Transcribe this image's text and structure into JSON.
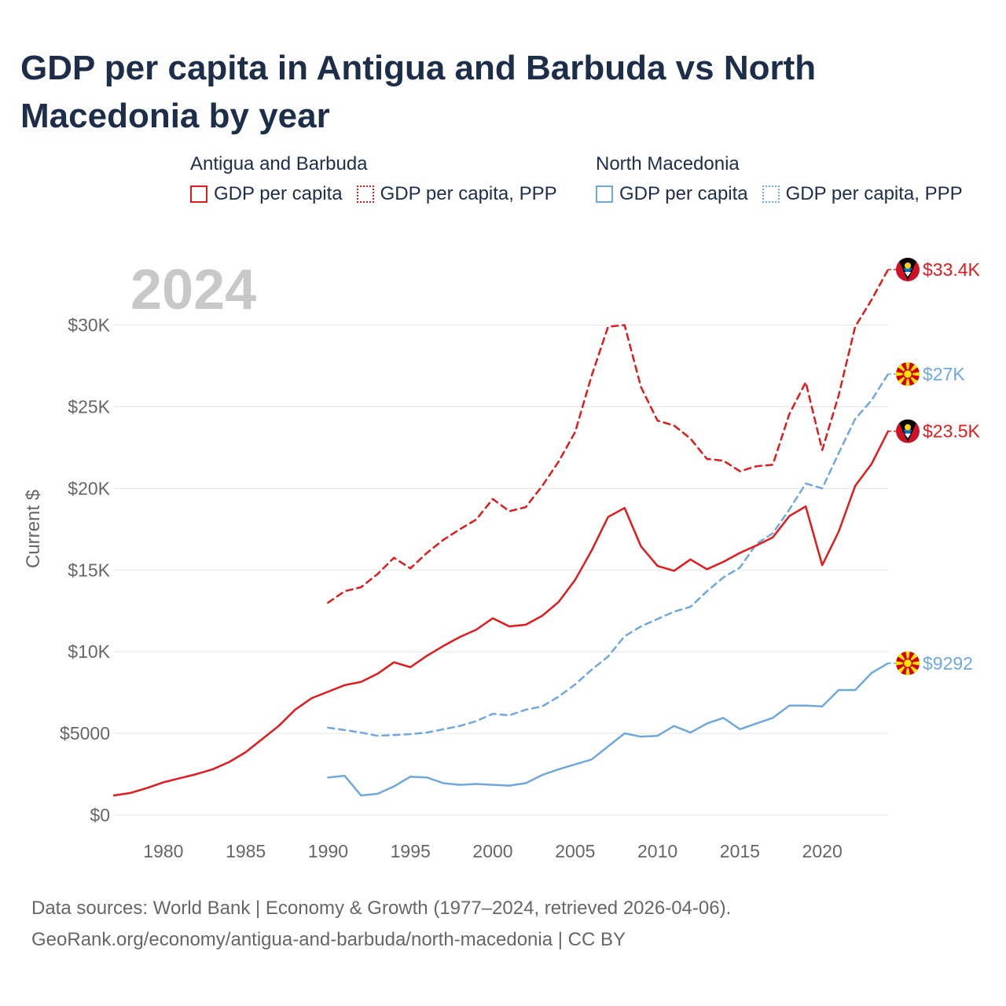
{
  "title": "GDP per capita in Antigua and Barbuda vs North Macedonia by year",
  "legend": {
    "groups": [
      {
        "country": "Antigua and Barbuda",
        "items": [
          "GDP per capita",
          "GDP per capita, PPP"
        ]
      },
      {
        "country": "North Macedonia",
        "items": [
          "GDP per capita",
          "GDP per capita, PPP"
        ]
      }
    ]
  },
  "source": {
    "line1": "Data sources: World Bank | Economy & Growth (1977–2024, retrieved 2026-04-06).",
    "line2": "GeoRank.org/economy/antigua-and-barbuda/north-macedonia | CC BY"
  },
  "colors": {
    "antigua": "#e31a1c",
    "macedonia": "#6fa8dc",
    "grid": "#e6e6e6",
    "axis_text": "#666666",
    "year_watermark": "#c8c8c8"
  },
  "chart_data": {
    "type": "line",
    "title": "GDP per capita in Antigua and Barbuda vs North Macedonia by year",
    "year_label": "2024",
    "ylabel": "Current $",
    "xlabel": "",
    "xlim": [
      1977,
      2024
    ],
    "ylim": [
      0,
      34000
    ],
    "x_ticks": [
      1980,
      1985,
      1990,
      1995,
      2000,
      2005,
      2010,
      2015,
      2020
    ],
    "y_ticks": [
      {
        "value": 0,
        "label": "$0"
      },
      {
        "value": 5000,
        "label": "$5000"
      },
      {
        "value": 10000,
        "label": "$10K"
      },
      {
        "value": 15000,
        "label": "$15K"
      },
      {
        "value": 20000,
        "label": "$20K"
      },
      {
        "value": 25000,
        "label": "$25K"
      },
      {
        "value": 30000,
        "label": "$30K"
      }
    ],
    "grid": true,
    "series": [
      {
        "name": "Antigua and Barbuda — GDP per capita, PPP",
        "country": "antigua",
        "style": "dashed",
        "end_label": "$33.4K",
        "x": [
          1990,
          1991,
          1992,
          1993,
          1994,
          1995,
          1996,
          1997,
          1998,
          1999,
          2000,
          2001,
          2002,
          2003,
          2004,
          2005,
          2006,
          2007,
          2008,
          2009,
          2010,
          2011,
          2012,
          2013,
          2014,
          2015,
          2016,
          2017,
          2018,
          2019,
          2020,
          2021,
          2022,
          2023,
          2024
        ],
        "values": [
          13000,
          13700,
          13950,
          14750,
          15750,
          15100,
          16050,
          16850,
          17500,
          18100,
          19350,
          18600,
          18850,
          20150,
          21650,
          23450,
          26900,
          29900,
          30000,
          26200,
          24150,
          23850,
          23050,
          21800,
          21700,
          21050,
          21350,
          21450,
          24550,
          26500,
          22350,
          25700,
          29900,
          31550,
          33400
        ]
      },
      {
        "name": "North Macedonia — GDP per capita, PPP",
        "country": "macedonia",
        "style": "dashed",
        "end_label": "$27K",
        "x": [
          1990,
          1991,
          1992,
          1993,
          1994,
          1995,
          1996,
          1997,
          1998,
          1999,
          2000,
          2001,
          2002,
          2003,
          2004,
          2005,
          2006,
          2007,
          2008,
          2009,
          2010,
          2011,
          2012,
          2013,
          2014,
          2015,
          2016,
          2017,
          2018,
          2019,
          2020,
          2021,
          2022,
          2023,
          2024
        ],
        "values": [
          5350,
          5200,
          5050,
          4850,
          4900,
          4950,
          5050,
          5250,
          5450,
          5750,
          6200,
          6100,
          6450,
          6650,
          7250,
          8000,
          8900,
          9700,
          10950,
          11550,
          12000,
          12450,
          12750,
          13700,
          14550,
          15150,
          16600,
          17250,
          18700,
          20300,
          20000,
          22150,
          24250,
          25400,
          27000
        ]
      },
      {
        "name": "Antigua and Barbuda — GDP per capita",
        "country": "antigua",
        "style": "solid",
        "end_label": "$23.5K",
        "x": [
          1977,
          1978,
          1979,
          1980,
          1981,
          1982,
          1983,
          1984,
          1985,
          1986,
          1987,
          1988,
          1989,
          1990,
          1991,
          1992,
          1993,
          1994,
          1995,
          1996,
          1997,
          1998,
          1999,
          2000,
          2001,
          2002,
          2003,
          2004,
          2005,
          2006,
          2007,
          2008,
          2009,
          2010,
          2011,
          2012,
          2013,
          2014,
          2015,
          2016,
          2017,
          2018,
          2019,
          2020,
          2021,
          2022,
          2023,
          2024
        ],
        "values": [
          1200,
          1350,
          1650,
          2000,
          2250,
          2500,
          2800,
          3250,
          3850,
          4650,
          5450,
          6450,
          7150,
          7550,
          7950,
          8150,
          8650,
          9350,
          9050,
          9750,
          10350,
          10900,
          11350,
          12050,
          11550,
          11650,
          12200,
          13050,
          14400,
          16200,
          18250,
          18800,
          16450,
          15250,
          14950,
          15650,
          15050,
          15500,
          16050,
          16500,
          17000,
          18300,
          18900,
          15300,
          17350,
          20150,
          21500,
          23500
        ]
      },
      {
        "name": "North Macedonia — GDP per capita",
        "country": "macedonia",
        "style": "solid",
        "end_label": "$9292",
        "x": [
          1990,
          1991,
          1992,
          1993,
          1994,
          1995,
          1996,
          1997,
          1998,
          1999,
          2000,
          2001,
          2002,
          2003,
          2004,
          2005,
          2006,
          2007,
          2008,
          2009,
          2010,
          2011,
          2012,
          2013,
          2014,
          2015,
          2016,
          2017,
          2018,
          2019,
          2020,
          2021,
          2022,
          2023,
          2024
        ],
        "values": [
          2300,
          2400,
          1200,
          1300,
          1750,
          2350,
          2300,
          1950,
          1850,
          1900,
          1850,
          1800,
          1950,
          2450,
          2800,
          3100,
          3400,
          4200,
          5000,
          4800,
          4850,
          5450,
          5050,
          5600,
          5950,
          5250,
          5600,
          5950,
          6700,
          6700,
          6650,
          7650,
          7650,
          8700,
          9292
        ]
      }
    ]
  }
}
